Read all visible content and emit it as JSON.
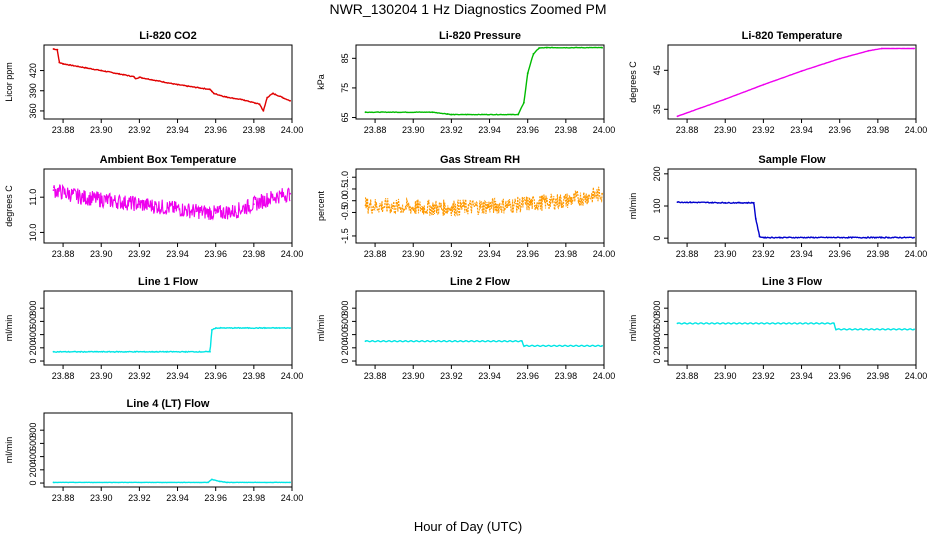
{
  "title": "NWR_130204  1 Hz Diagnostics Zoomed PM",
  "xlabel": "Hour of Day (UTC)",
  "chart_data": [
    {
      "id": "co2",
      "type": "line",
      "title": "Li-820 CO2",
      "ylabel": "Licor ppm",
      "color": "#e00000",
      "xlim": [
        23.87,
        24.0
      ],
      "ylim": [
        348,
        458
      ],
      "yticks": [
        360,
        390,
        420
      ],
      "xticks": [
        23.88,
        23.9,
        23.92,
        23.94,
        23.96,
        23.98,
        24.0
      ],
      "x": [
        23.875,
        23.877,
        23.878,
        23.88,
        23.9,
        23.917,
        23.918,
        23.92,
        23.94,
        23.957,
        23.958,
        23.959,
        23.965,
        23.975,
        23.983,
        23.985,
        23.987,
        23.99,
        23.995,
        23.999
      ],
      "y": [
        452,
        451,
        432,
        430,
        420,
        411,
        408,
        410,
        399,
        392,
        389,
        386,
        381,
        376,
        370,
        360,
        380,
        386,
        380,
        375
      ]
    },
    {
      "id": "pressure",
      "type": "line",
      "title": "Li-820 Pressure",
      "ylabel": "kPa",
      "color": "#00bb00",
      "xlim": [
        23.87,
        24.0
      ],
      "ylim": [
        64.5,
        89.5
      ],
      "yticks": [
        65,
        75,
        85
      ],
      "xticks": [
        23.88,
        23.9,
        23.92,
        23.94,
        23.96,
        23.98,
        24.0
      ],
      "x": [
        23.875,
        23.91,
        23.918,
        23.92,
        23.955,
        23.958,
        23.96,
        23.963,
        23.966,
        23.97,
        23.999
      ],
      "y": [
        66.8,
        66.8,
        66.2,
        66.0,
        66.0,
        70,
        80,
        86.5,
        88.5,
        88.6,
        88.6
      ]
    },
    {
      "id": "temperature",
      "type": "line",
      "title": "Li-820 Temperature",
      "ylabel": "degrees C",
      "color": "#ee00ee",
      "xlim": [
        23.87,
        24.0
      ],
      "ylim": [
        32.5,
        51.5
      ],
      "yticks": [
        35,
        45
      ],
      "xticks": [
        23.88,
        23.9,
        23.92,
        23.94,
        23.96,
        23.98,
        24.0
      ],
      "x": [
        23.875,
        23.9,
        23.92,
        23.94,
        23.96,
        23.975,
        23.982,
        23.999
      ],
      "y": [
        33.2,
        37.6,
        41.3,
        44.8,
        48.0,
        50.0,
        50.6,
        50.6
      ]
    },
    {
      "id": "ambient",
      "type": "line",
      "title": "Ambient Box Temperature",
      "ylabel": "degrees C",
      "color": "#ee00ee",
      "xlim": [
        23.87,
        24.0
      ],
      "ylim": [
        9.7,
        11.8
      ],
      "yticks": [
        10.0,
        11.0
      ],
      "xticks": [
        23.88,
        23.9,
        23.92,
        23.94,
        23.96,
        23.98,
        24.0
      ],
      "x": [
        23.875,
        23.89,
        23.905,
        23.92,
        23.935,
        23.95,
        23.96,
        23.97,
        23.98,
        23.99,
        23.999
      ],
      "y": [
        11.2,
        11.0,
        10.9,
        10.8,
        10.7,
        10.6,
        10.55,
        10.6,
        10.8,
        11.0,
        11.1
      ]
    },
    {
      "id": "rh",
      "type": "line",
      "title": "Gas Stream RH",
      "ylabel": "percent",
      "color": "#ff9900",
      "xlim": [
        23.87,
        24.0
      ],
      "ylim": [
        -1.8,
        1.35
      ],
      "yticks": [
        -1.5,
        -0.5,
        0.0,
        0.5,
        1.0
      ],
      "xticks": [
        23.88,
        23.9,
        23.92,
        23.94,
        23.96,
        23.98,
        24.0
      ],
      "x": [
        23.875,
        23.89,
        23.905,
        23.92,
        23.935,
        23.95,
        23.965,
        23.98,
        23.99,
        23.999
      ],
      "y": [
        -0.2,
        -0.25,
        -0.3,
        -0.3,
        -0.25,
        -0.2,
        -0.1,
        0.0,
        0.15,
        0.3
      ]
    },
    {
      "id": "sample",
      "type": "line",
      "title": "Sample Flow",
      "ylabel": "ml/min",
      "color": "#0000cc",
      "xlim": [
        23.87,
        24.0
      ],
      "ylim": [
        -15,
        215
      ],
      "yticks": [
        0,
        100,
        200
      ],
      "xticks": [
        23.88,
        23.9,
        23.92,
        23.94,
        23.96,
        23.98,
        24.0
      ],
      "x": [
        23.875,
        23.9,
        23.915,
        23.916,
        23.918,
        23.92,
        23.999
      ],
      "y": [
        112,
        110,
        110,
        60,
        5,
        2,
        2
      ]
    },
    {
      "id": "line1",
      "type": "line",
      "title": "Line 1 Flow",
      "ylabel": "ml/min",
      "color": "#00e5e5",
      "xlim": [
        23.87,
        24.0
      ],
      "ylim": [
        -60,
        1060
      ],
      "yticks": [
        0,
        200,
        400,
        600,
        800
      ],
      "xticks": [
        23.88,
        23.9,
        23.92,
        23.94,
        23.96,
        23.98,
        24.0
      ],
      "x": [
        23.875,
        23.957,
        23.958,
        23.96,
        23.999
      ],
      "y": [
        140,
        140,
        470,
        500,
        500
      ]
    },
    {
      "id": "line2",
      "type": "line",
      "title": "Line 2 Flow",
      "ylabel": "ml/min",
      "color": "#00e5e5",
      "xlim": [
        23.87,
        24.0
      ],
      "ylim": [
        -60,
        1060
      ],
      "yticks": [
        0,
        200,
        400,
        600,
        800
      ],
      "xticks": [
        23.88,
        23.9,
        23.92,
        23.94,
        23.96,
        23.98,
        24.0
      ],
      "x": [
        23.875,
        23.957,
        23.958,
        23.999
      ],
      "y": [
        300,
        300,
        230,
        230
      ]
    },
    {
      "id": "line3",
      "type": "line",
      "title": "Line 3 Flow",
      "ylabel": "ml/min",
      "color": "#00e5e5",
      "xlim": [
        23.87,
        24.0
      ],
      "ylim": [
        -60,
        1060
      ],
      "yticks": [
        0,
        200,
        400,
        600,
        800
      ],
      "xticks": [
        23.88,
        23.9,
        23.92,
        23.94,
        23.96,
        23.98,
        24.0
      ],
      "x": [
        23.875,
        23.957,
        23.958,
        23.999
      ],
      "y": [
        570,
        570,
        480,
        480
      ]
    },
    {
      "id": "line4",
      "type": "line",
      "title": "Line 4 (LT) Flow",
      "ylabel": "ml/min",
      "color": "#00e5e5",
      "xlim": [
        23.87,
        24.0
      ],
      "ylim": [
        -60,
        1060
      ],
      "yticks": [
        0,
        200,
        400,
        600,
        800
      ],
      "xticks": [
        23.88,
        23.9,
        23.92,
        23.94,
        23.96,
        23.98,
        24.0
      ],
      "x": [
        23.875,
        23.956,
        23.958,
        23.962,
        23.966,
        23.999
      ],
      "y": [
        10,
        10,
        55,
        25,
        10,
        10
      ]
    }
  ]
}
